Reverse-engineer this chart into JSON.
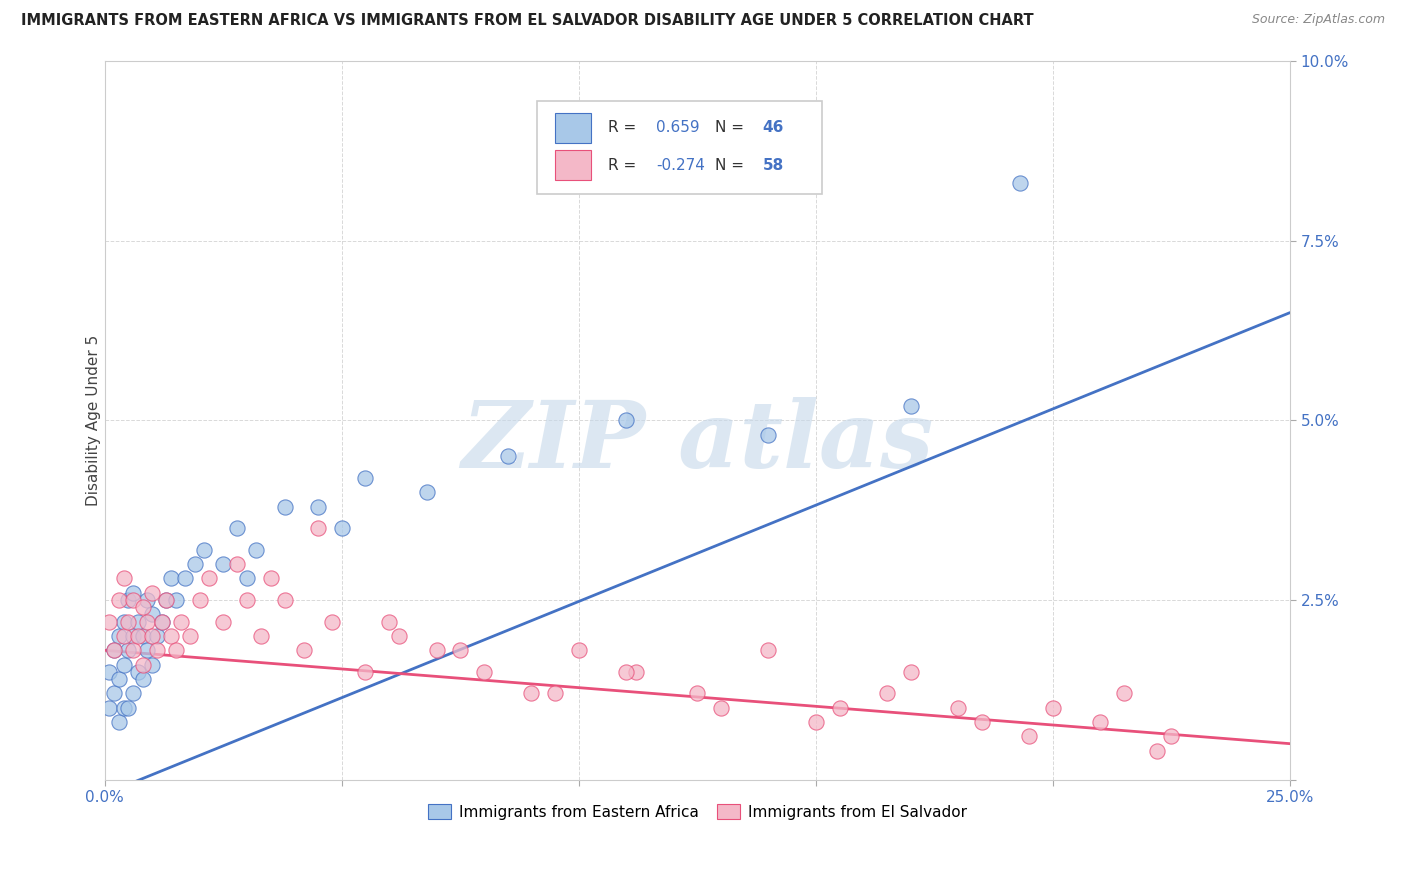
{
  "title": "IMMIGRANTS FROM EASTERN AFRICA VS IMMIGRANTS FROM EL SALVADOR DISABILITY AGE UNDER 5 CORRELATION CHART",
  "source": "Source: ZipAtlas.com",
  "ylabel": "Disability Age Under 5",
  "legend_label1": "Immigrants from Eastern Africa",
  "legend_label2": "Immigrants from El Salvador",
  "R1": 0.659,
  "N1": 46,
  "R2": -0.274,
  "N2": 58,
  "color1": "#a8c8e8",
  "color2": "#f4b8c8",
  "line_color1": "#4472c4",
  "line_color2": "#e8507a",
  "xlim": [
    0.0,
    0.25
  ],
  "ylim": [
    0.0,
    0.1
  ],
  "blue_line_x0": 0.0,
  "blue_line_y0": -0.002,
  "blue_line_x1": 0.25,
  "blue_line_y1": 0.065,
  "pink_line_x0": 0.0,
  "pink_line_y0": 0.018,
  "pink_line_x1": 0.25,
  "pink_line_y1": 0.005,
  "series1_x": [
    0.001,
    0.001,
    0.002,
    0.002,
    0.003,
    0.003,
    0.003,
    0.004,
    0.004,
    0.004,
    0.005,
    0.005,
    0.005,
    0.006,
    0.006,
    0.006,
    0.007,
    0.007,
    0.008,
    0.008,
    0.009,
    0.009,
    0.01,
    0.01,
    0.011,
    0.012,
    0.013,
    0.014,
    0.015,
    0.017,
    0.019,
    0.021,
    0.025,
    0.028,
    0.032,
    0.038,
    0.045,
    0.055,
    0.068,
    0.085,
    0.11,
    0.14,
    0.17,
    0.193,
    0.05,
    0.03
  ],
  "series1_y": [
    0.01,
    0.015,
    0.012,
    0.018,
    0.008,
    0.014,
    0.02,
    0.01,
    0.016,
    0.022,
    0.01,
    0.018,
    0.025,
    0.012,
    0.02,
    0.026,
    0.015,
    0.022,
    0.014,
    0.02,
    0.018,
    0.025,
    0.016,
    0.023,
    0.02,
    0.022,
    0.025,
    0.028,
    0.025,
    0.028,
    0.03,
    0.032,
    0.03,
    0.035,
    0.032,
    0.038,
    0.038,
    0.042,
    0.04,
    0.045,
    0.05,
    0.048,
    0.052,
    0.083,
    0.035,
    0.028
  ],
  "series2_x": [
    0.001,
    0.002,
    0.003,
    0.004,
    0.004,
    0.005,
    0.006,
    0.006,
    0.007,
    0.008,
    0.008,
    0.009,
    0.01,
    0.01,
    0.011,
    0.012,
    0.013,
    0.014,
    0.015,
    0.016,
    0.018,
    0.02,
    0.022,
    0.025,
    0.028,
    0.03,
    0.033,
    0.038,
    0.042,
    0.048,
    0.055,
    0.062,
    0.07,
    0.08,
    0.09,
    0.1,
    0.112,
    0.125,
    0.14,
    0.155,
    0.17,
    0.185,
    0.2,
    0.215,
    0.225,
    0.035,
    0.045,
    0.06,
    0.075,
    0.095,
    0.11,
    0.13,
    0.15,
    0.165,
    0.18,
    0.195,
    0.21,
    0.222
  ],
  "series2_y": [
    0.022,
    0.018,
    0.025,
    0.02,
    0.028,
    0.022,
    0.018,
    0.025,
    0.02,
    0.024,
    0.016,
    0.022,
    0.02,
    0.026,
    0.018,
    0.022,
    0.025,
    0.02,
    0.018,
    0.022,
    0.02,
    0.025,
    0.028,
    0.022,
    0.03,
    0.025,
    0.02,
    0.025,
    0.018,
    0.022,
    0.015,
    0.02,
    0.018,
    0.015,
    0.012,
    0.018,
    0.015,
    0.012,
    0.018,
    0.01,
    0.015,
    0.008,
    0.01,
    0.012,
    0.006,
    0.028,
    0.035,
    0.022,
    0.018,
    0.012,
    0.015,
    0.01,
    0.008,
    0.012,
    0.01,
    0.006,
    0.008,
    0.004
  ],
  "yticks": [
    0.0,
    0.025,
    0.05,
    0.075,
    0.1
  ],
  "xticks": [
    0.0,
    0.05,
    0.1,
    0.15,
    0.2,
    0.25
  ],
  "tick_color": "#4472c4",
  "grid_color": "#d0d0d0",
  "watermark_color": "#c5d8ea",
  "bg_color": "#ffffff"
}
